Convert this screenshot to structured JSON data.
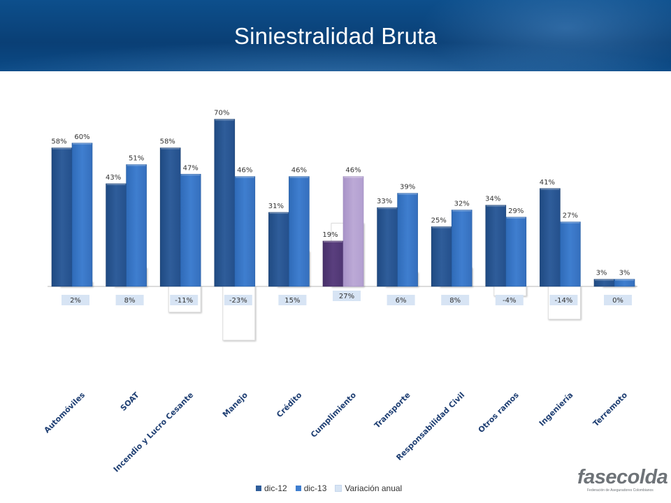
{
  "header": {
    "title": "Siniestralidad  Bruta"
  },
  "colors": {
    "dic12": "#2f5d9a",
    "dic13": "#3f7ecf",
    "variacion": "#d7e4f4",
    "cumplimiento_dic12": "#5a3f7e",
    "cumplimiento_dic13": "#bca9d6"
  },
  "chart_data": {
    "type": "bar",
    "categories": [
      "Automóviles",
      "SOAT",
      "Incendio y Lucro Cesante",
      "Manejo",
      "Crédito",
      "Cumplimiento",
      "Transporte",
      "Responsabilidad Civil",
      "Otros ramos",
      "Ingeniería",
      "Terremoto"
    ],
    "series": [
      {
        "name": "dic-12",
        "values": [
          58,
          43,
          58,
          70,
          31,
          19,
          33,
          25,
          34,
          41,
          3
        ],
        "labels": [
          "58%",
          "43%",
          "58%",
          "70%",
          "31%",
          "19%",
          "33%",
          "25%",
          "34%",
          "41%",
          "3%"
        ]
      },
      {
        "name": "dic-13",
        "values": [
          60,
          51,
          47,
          46,
          46,
          46,
          39,
          32,
          29,
          27,
          3
        ],
        "labels": [
          "60%",
          "51%",
          "47%",
          "46%",
          "46%",
          "46%",
          "39%",
          "32%",
          "29%",
          "27%",
          "3%"
        ]
      },
      {
        "name": "Variación anual",
        "values": [
          2,
          8,
          -11,
          -23,
          15,
          27,
          6,
          8,
          -4,
          -14,
          0
        ],
        "labels": [
          "2%",
          "8%",
          "-11%",
          "-23%",
          "15%",
          "27%",
          "6%",
          "8%",
          "-4%",
          "-14%",
          "0%"
        ]
      }
    ],
    "ylim": [
      -25,
      75
    ],
    "grid": false,
    "legend": "bottom-center"
  },
  "legend": {
    "items": [
      {
        "label": "dic-12",
        "color": "#2f5d9a"
      },
      {
        "label": "dic-13",
        "color": "#3f7ecf"
      },
      {
        "label": "Variación anual",
        "color": "#d7e4f4"
      }
    ]
  },
  "logo": {
    "name": "fasecolda",
    "tagline": "Federación de Aseguradores Colombianos"
  }
}
